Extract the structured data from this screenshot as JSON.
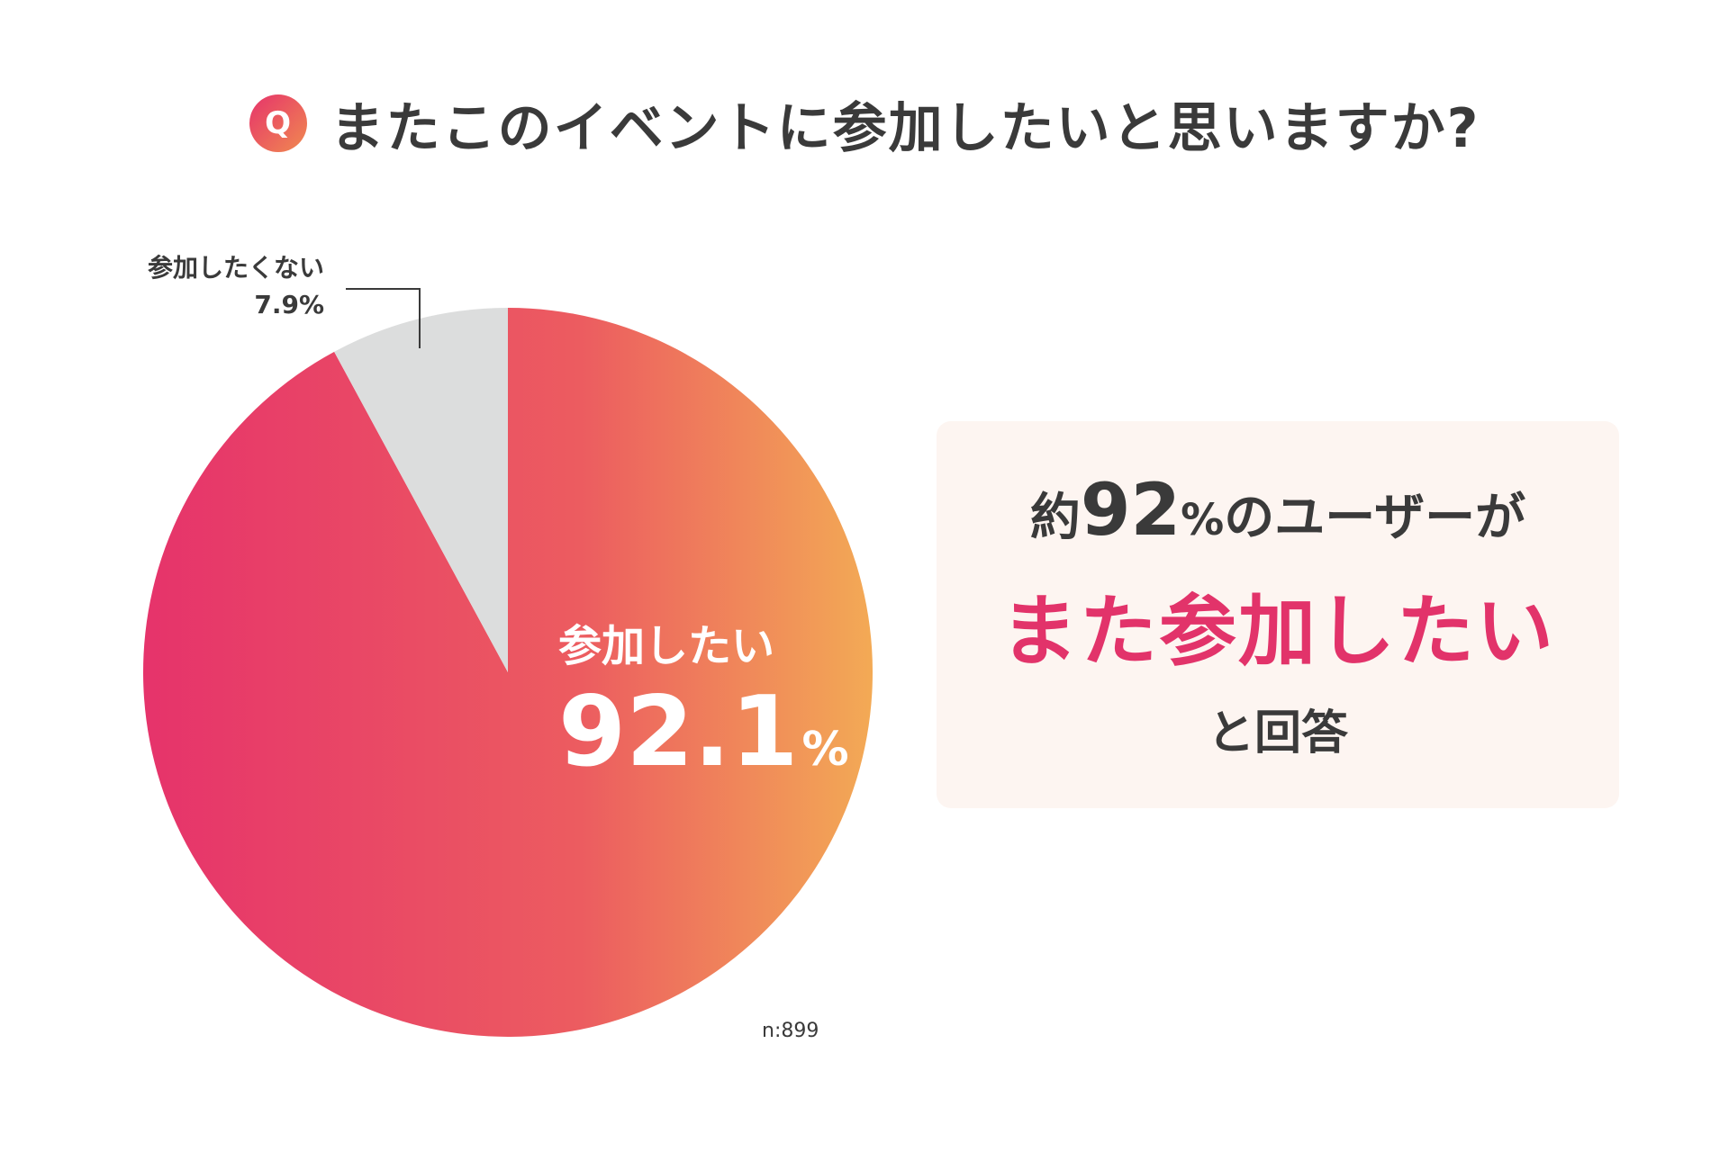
{
  "question": {
    "badge": "Q",
    "text": "またこのイベントに参加したいと思いますか?"
  },
  "chart_data": {
    "type": "pie",
    "title": "またこのイベントに参加したいと思いますか?",
    "slices": [
      {
        "label": "参加したい",
        "value": 92.1,
        "display": "92.1",
        "unit": "%",
        "color": "gradient #e6336b → #f3aa55"
      },
      {
        "label": "参加したくない",
        "value": 7.9,
        "display": "7.9%",
        "color": "#dcdddd"
      }
    ],
    "sample_size": "n:899"
  },
  "callout": {
    "prefix": "約",
    "number": "92",
    "percent": "%",
    "suffix": "のユーザーが",
    "highlight": "また参加したい",
    "closing": "と回答"
  },
  "colors": {
    "accent": "#e2336a",
    "gradient_start": "#e6336b",
    "gradient_end": "#f3aa55",
    "minor_slice": "#dcdddd",
    "callout_bg": "#fdf5f1",
    "text": "#3a3a3a"
  }
}
